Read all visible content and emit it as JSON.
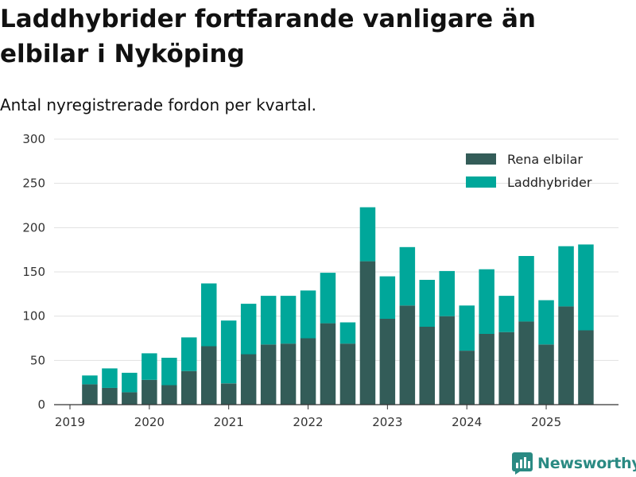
{
  "title": "Laddhybrider fortfarande vanligare än elbilar i Nyköping",
  "subtitle": "Antal nyregistrerade fordon per kvartal.",
  "brand": "Newsworthy",
  "colors": {
    "elbil": "#335c58",
    "laddhybrid": "#00a79a",
    "grid": "#e0e0e0",
    "axis": "#333333",
    "brand": "#2a8a83"
  },
  "chart_data": {
    "type": "bar",
    "stacked": true,
    "title": "Laddhybrider fortfarande vanligare än elbilar i Nyköping",
    "subtitle": "Antal nyregistrerade fordon per kvartal.",
    "xlabel": "",
    "ylabel": "",
    "ylim": [
      0,
      300
    ],
    "yticks": [
      0,
      50,
      100,
      150,
      200,
      250,
      300
    ],
    "xticks": [
      "2019",
      "2020",
      "2021",
      "2022",
      "2023",
      "2024",
      "2025"
    ],
    "legend_position": "top-right",
    "categories": [
      "2019 Q2",
      "2019 Q3",
      "2019 Q4",
      "2020 Q1",
      "2020 Q2",
      "2020 Q3",
      "2020 Q4",
      "2021 Q1",
      "2021 Q2",
      "2021 Q3",
      "2021 Q4",
      "2022 Q1",
      "2022 Q2",
      "2022 Q3",
      "2022 Q4",
      "2023 Q1",
      "2023 Q2",
      "2023 Q3",
      "2023 Q4",
      "2024 Q1",
      "2024 Q2",
      "2024 Q3",
      "2024 Q4",
      "2025 Q1",
      "2025 Q2",
      "2025 Q3"
    ],
    "series": [
      {
        "name": "Rena elbilar",
        "values": [
          23,
          19,
          14,
          28,
          22,
          38,
          66,
          24,
          57,
          68,
          69,
          75,
          92,
          69,
          162,
          97,
          112,
          88,
          100,
          61,
          80,
          82,
          94,
          68,
          111,
          84
        ]
      },
      {
        "name": "Laddhybrider",
        "values": [
          10,
          22,
          22,
          30,
          31,
          38,
          71,
          71,
          57,
          55,
          54,
          54,
          57,
          24,
          61,
          48,
          66,
          53,
          51,
          51,
          73,
          41,
          74,
          50,
          68,
          97
        ]
      }
    ]
  }
}
